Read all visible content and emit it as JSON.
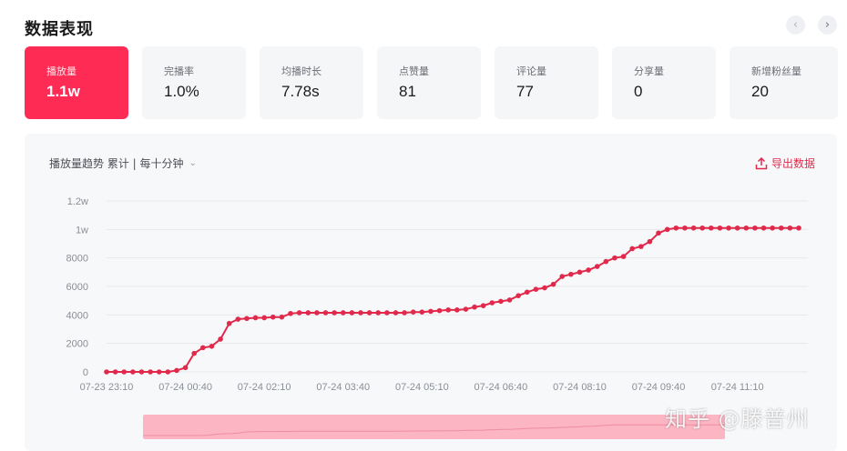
{
  "header": {
    "title": "数据表现",
    "prev_icon": "chevron-left-icon",
    "next_icon": "chevron-right-icon",
    "prev_glyph": "‹",
    "next_glyph": "›"
  },
  "metrics": [
    {
      "label": "播放量",
      "value": "1.1w",
      "active": true
    },
    {
      "label": "完播率",
      "value": "1.0%"
    },
    {
      "label": "均播时长",
      "value": "7.78s"
    },
    {
      "label": "点赞量",
      "value": "81"
    },
    {
      "label": "评论量",
      "value": "77"
    },
    {
      "label": "分享量",
      "value": "0"
    },
    {
      "label": "新增粉丝量",
      "value": "20"
    }
  ],
  "panel": {
    "title": "播放量趋势 累计 | 每十分钟",
    "dropdown_icon": "chevron-down-icon",
    "export_label": "导出数据",
    "export_icon": "upload-icon"
  },
  "watermark": "知乎 @滕普州",
  "colors": {
    "accent": "#fe2c55",
    "line": "#e0294b",
    "brush": "#fbb5c3"
  },
  "chart_data": {
    "type": "line",
    "y_tick_labels": [
      "0",
      "2000",
      "4000",
      "6000",
      "8000",
      "1w",
      "1.2w"
    ],
    "y_ticks": [
      0,
      2000,
      4000,
      6000,
      8000,
      10000,
      12000
    ],
    "ylim": [
      0,
      12000
    ],
    "x_tick_labels": [
      "07-23 23:10",
      "07-24 00:40",
      "07-24 02:10",
      "07-24 03:40",
      "07-24 05:10",
      "07-24 06:40",
      "07-24 08:10",
      "07-24 09:40",
      "07-24 11:10"
    ],
    "series": [
      {
        "values": [
          0,
          0,
          0,
          0,
          0,
          0,
          0,
          0,
          100,
          300,
          1300,
          1700,
          1800,
          2300,
          3400,
          3700,
          3750,
          3800,
          3800,
          3850,
          3850,
          4100,
          4150,
          4150,
          4150,
          4150,
          4150,
          4150,
          4150,
          4150,
          4150,
          4150,
          4150,
          4150,
          4150,
          4200,
          4200,
          4250,
          4300,
          4350,
          4350,
          4400,
          4550,
          4650,
          4850,
          4950,
          5050,
          5350,
          5600,
          5800,
          5900,
          6150,
          6700,
          6850,
          7000,
          7150,
          7400,
          7750,
          8000,
          8100,
          8650,
          8800,
          9150,
          9750,
          10000,
          10100,
          10100,
          10100,
          10100,
          10100,
          10100,
          10100,
          10100,
          10100,
          10100,
          10100,
          10100,
          10100,
          10100,
          10100
        ]
      }
    ]
  }
}
